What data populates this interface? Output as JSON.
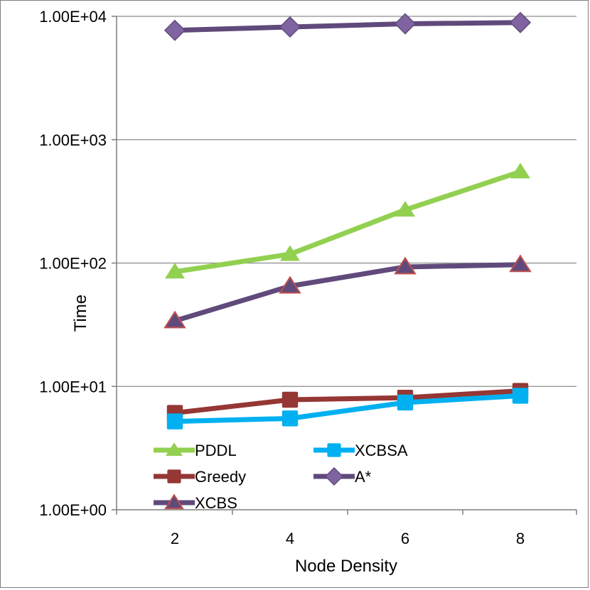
{
  "chart_data": {
    "type": "line",
    "title": "",
    "xlabel": "Node Density",
    "ylabel": "Time",
    "yscale": "log",
    "ylim": [
      1,
      10000
    ],
    "categories": [
      "2",
      "4",
      "6",
      "8"
    ],
    "y_tick_labels": [
      "1.00E+00",
      "1.00E+01",
      "1.00E+02",
      "1.00E+03",
      "1.00E+04"
    ],
    "y_tick_values": [
      1,
      10,
      100,
      1000,
      10000
    ],
    "grid": true,
    "legend_position": "bottom-left",
    "series": [
      {
        "name": "PDDL",
        "color": "#92d050",
        "marker": "triangle",
        "values": [
          85,
          118,
          270,
          550
        ]
      },
      {
        "name": "XCBSA",
        "color": "#00b0f0",
        "marker": "square",
        "values": [
          5.2,
          5.5,
          7.4,
          8.4
        ]
      },
      {
        "name": "Greedy",
        "color": "#953735",
        "marker": "square",
        "values": [
          6.1,
          7.8,
          8.1,
          9.2
        ]
      },
      {
        "name": "A*",
        "color": "#604a7b",
        "marker": "diamond",
        "marker_fill": "#8064a2",
        "values": [
          7700,
          8200,
          8700,
          8900
        ]
      },
      {
        "name": "XCBS",
        "color": "#604a7b",
        "marker": "triangle",
        "marker_fill": "#604a7b",
        "marker_stroke": "#c0504d",
        "values": [
          34,
          65,
          93,
          97
        ]
      }
    ]
  }
}
